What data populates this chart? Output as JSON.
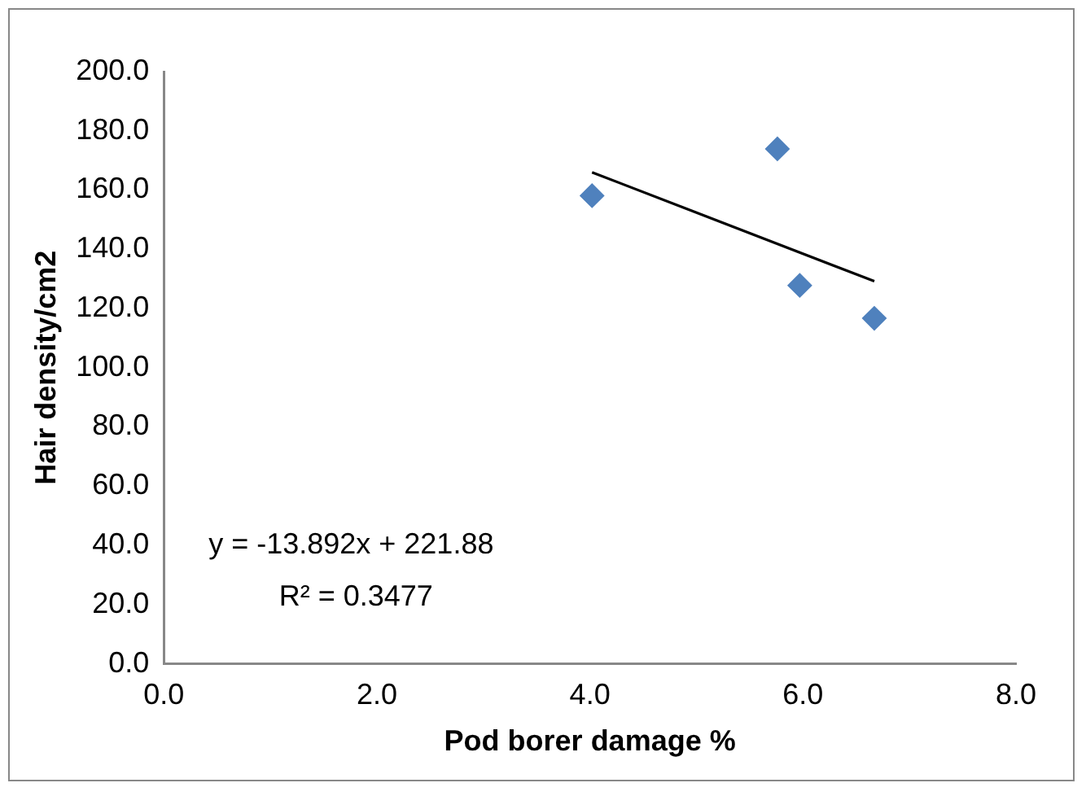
{
  "chart_data": {
    "type": "scatter",
    "xlabel": "Pod borer damage %",
    "ylabel": "Hair density/cm2",
    "xlim": [
      0,
      8
    ],
    "xticks": [
      {
        "value": 0,
        "label": "0.0"
      },
      {
        "value": 2,
        "label": "2.0"
      },
      {
        "value": 4,
        "label": "4.0"
      },
      {
        "value": 6,
        "label": "6.0"
      },
      {
        "value": 8,
        "label": "8.0"
      }
    ],
    "ylim": [
      0,
      200
    ],
    "yticks": [
      {
        "value": 0,
        "label": "0.0"
      },
      {
        "value": 20,
        "label": "20.0"
      },
      {
        "value": 40,
        "label": "40.0"
      },
      {
        "value": 60,
        "label": "60.0"
      },
      {
        "value": 80,
        "label": "80.0"
      },
      {
        "value": 100,
        "label": "100.0"
      },
      {
        "value": 120,
        "label": "120.0"
      },
      {
        "value": 140,
        "label": "140.0"
      },
      {
        "value": 160,
        "label": "160.0"
      },
      {
        "value": 180,
        "label": "180.0"
      },
      {
        "value": 200,
        "label": "200.0"
      }
    ],
    "grid": false,
    "legend": false,
    "series": [
      {
        "color": "#4f81bd",
        "marker": "diamond",
        "x": [
          4.02,
          5.76,
          5.97,
          6.67
        ],
        "values": [
          158.1,
          173.9,
          127.8,
          116.7
        ]
      },
      {
        "type": "line",
        "color": "#000000",
        "marker": "none",
        "x": [
          4.02,
          6.67
        ],
        "values": [
          166.0,
          129.2
        ]
      }
    ],
    "annotations": [
      "y = -13.892x + 221.88",
      "R² = 0.3477"
    ]
  }
}
